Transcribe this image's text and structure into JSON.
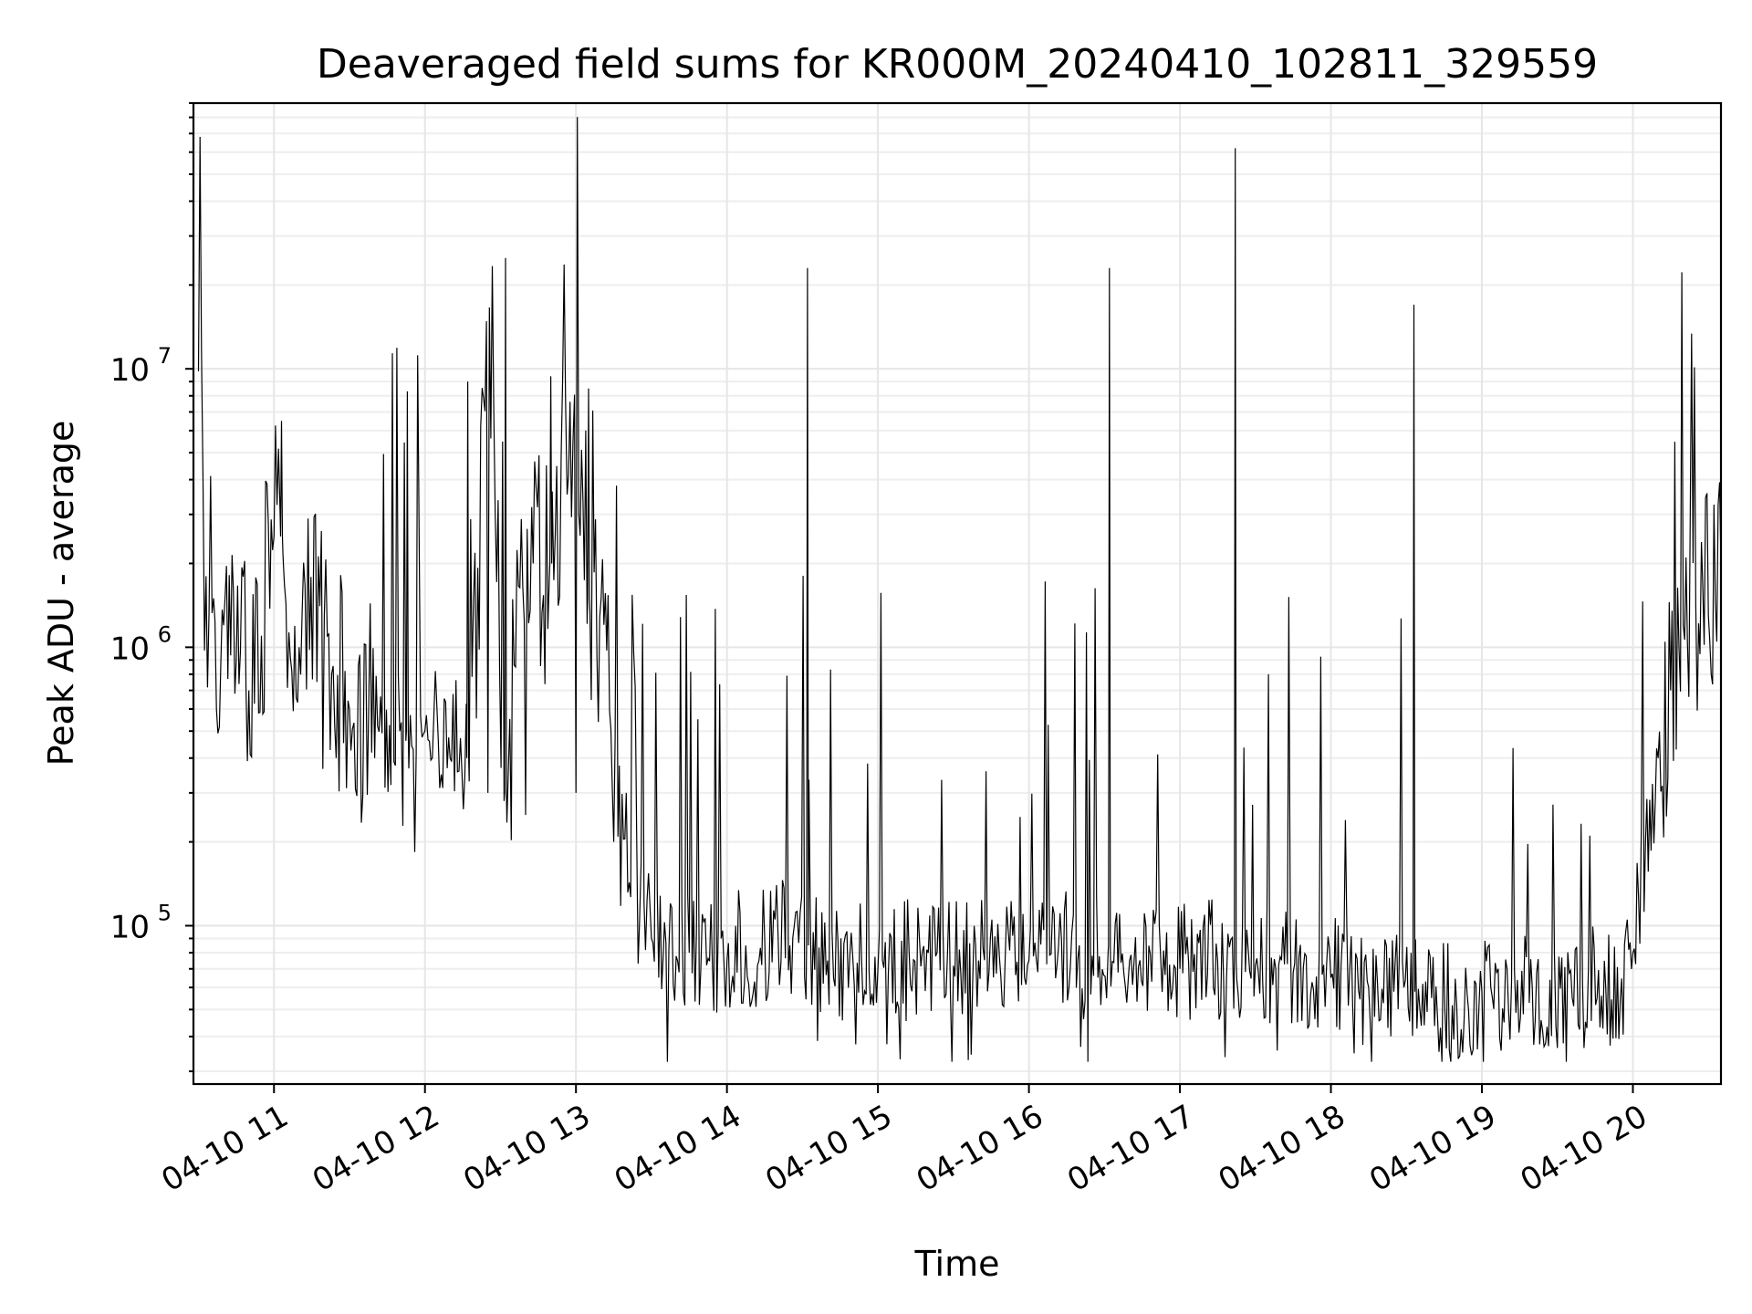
{
  "chart_data": {
    "type": "line",
    "title": "Deaveraged field sums for KR000M_20240410_102811_329559",
    "xlabel": "Time",
    "ylabel": "Peak ADU - average",
    "yscale": "log",
    "ylim": [
      27000,
      90000000
    ],
    "xlim": [
      "04-10 10:28",
      "04-10 20:35"
    ],
    "grid": true,
    "x_ticks": [
      "04-10 11",
      "04-10 12",
      "04-10 13",
      "04-10 14",
      "04-10 15",
      "04-10 16",
      "04-10 17",
      "04-10 18",
      "04-10 19",
      "04-10 20"
    ],
    "y_ticks": [
      {
        "base": "10",
        "exp": "5",
        "value": 100000
      },
      {
        "base": "10",
        "exp": "6",
        "value": 1000000
      },
      {
        "base": "10",
        "exp": "7",
        "value": 10000000
      }
    ],
    "series": [
      {
        "color": "#000000",
        "x": [
          "04-10 10:30",
          "04-10 10:33",
          "04-10 10:36",
          "04-10 10:40",
          "04-10 10:45",
          "04-10 10:50",
          "04-10 10:55",
          "04-10 11:00",
          "04-10 11:03",
          "04-10 11:10",
          "04-10 11:20",
          "04-10 11:30",
          "04-10 11:40",
          "04-10 11:50",
          "04-10 11:53",
          "04-10 12:00",
          "04-10 12:10",
          "04-10 12:17",
          "04-10 12:25",
          "04-10 12:32",
          "04-10 12:40",
          "04-10 12:43",
          "04-10 12:50",
          "04-10 13:00",
          "04-10 13:05",
          "04-10 13:10",
          "04-10 13:15",
          "04-10 13:20",
          "04-10 13:30",
          "04-10 13:45",
          "04-10 14:00",
          "04-10 14:15",
          "04-10 14:25",
          "04-10 14:32",
          "04-10 14:40",
          "04-10 15:00",
          "04-10 15:20",
          "04-10 15:40",
          "04-10 16:00",
          "04-10 16:20",
          "04-10 16:32",
          "04-10 16:40",
          "04-10 17:00",
          "04-10 17:15",
          "04-10 17:22",
          "04-10 17:30",
          "04-10 17:45",
          "04-10 18:00",
          "04-10 18:15",
          "04-10 18:25",
          "04-10 18:33",
          "04-10 18:40",
          "04-10 18:50",
          "04-10 19:00",
          "04-10 19:20",
          "04-10 19:40",
          "04-10 19:55",
          "04-10 20:00",
          "04-10 20:05",
          "04-10 20:10",
          "04-10 20:15",
          "04-10 20:20",
          "04-10 20:25",
          "04-10 20:30",
          "04-10 20:35"
        ],
        "y": [
          9800000,
          1800000,
          1500000,
          1200000,
          900000,
          700000,
          1100000,
          2500000,
          6500000,
          1000000,
          1300000,
          600000,
          400000,
          500000,
          8300000,
          500000,
          400000,
          9000000,
          300000,
          25000000,
          250000,
          2000000,
          9400000,
          300000,
          8500000,
          1500000,
          200000,
          300000,
          90000,
          80000,
          75000,
          90000,
          85000,
          23000000,
          75000,
          70000,
          80000,
          75000,
          75000,
          85000,
          23000000,
          75000,
          70000,
          75000,
          62000000,
          72000,
          68000,
          65000,
          60000,
          58000,
          17000000,
          55000,
          52000,
          58000,
          60000,
          62000,
          55000,
          80000,
          200000,
          400000,
          700000,
          1200000,
          1400000,
          1300000,
          2000000
        ]
      }
    ]
  }
}
